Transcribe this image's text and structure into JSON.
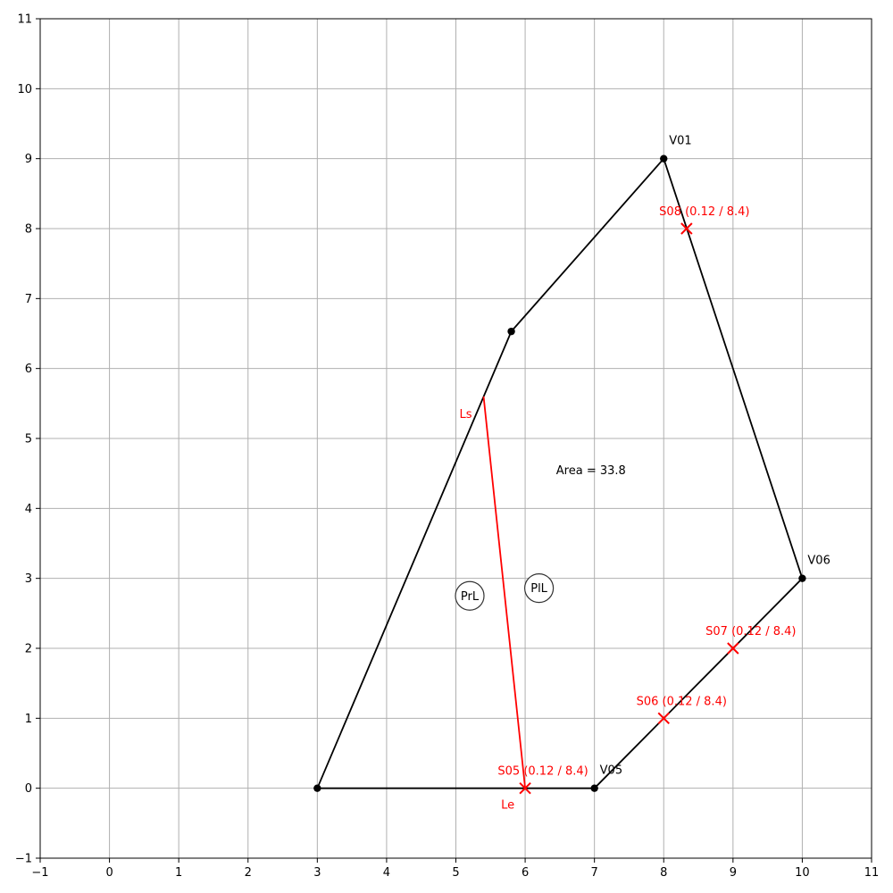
{
  "diagram": {
    "x_ticks": [
      -1,
      0,
      1,
      2,
      3,
      4,
      5,
      6,
      7,
      8,
      9,
      10,
      11
    ],
    "y_ticks": [
      -1,
      0,
      1,
      2,
      3,
      4,
      5,
      6,
      7,
      8,
      9,
      10,
      11
    ],
    "xlim": [
      -1,
      11
    ],
    "ylim": [
      -1,
      11
    ],
    "grid": true,
    "polygon": [
      {
        "x": 3,
        "y": 0,
        "label": ""
      },
      {
        "x": 7,
        "y": 0,
        "label": "V05"
      },
      {
        "x": 10,
        "y": 3,
        "label": "V06"
      },
      {
        "x": 8,
        "y": 9,
        "label": "V01"
      },
      {
        "x": 5.8,
        "y": 6.53,
        "label": ""
      }
    ],
    "area_label": "Area = 33.8",
    "area_label_pos": {
      "x": 6.95,
      "y": 4.55
    },
    "line": {
      "start": {
        "x": 5.4,
        "y": 5.6,
        "label": "Ls"
      },
      "end": {
        "x": 6.0,
        "y": 0.0,
        "label": "Le"
      }
    },
    "markers": [
      {
        "x": 6,
        "y": 0,
        "label": "S05 (0.12 / 8.4)"
      },
      {
        "x": 8,
        "y": 1,
        "label": "S06 (0.12 / 8.4)"
      },
      {
        "x": 9,
        "y": 2,
        "label": "S07 (0.12 / 8.4)"
      },
      {
        "x": 8.33,
        "y": 8,
        "label": "S08 (0.12 / 8.4)"
      }
    ],
    "circle_labels": [
      {
        "x": 5.2,
        "y": 2.75,
        "text": "PrL"
      },
      {
        "x": 6.2,
        "y": 2.86,
        "text": "PlL"
      }
    ],
    "colors": {
      "polygon": "#000000",
      "line": "#ff0000",
      "marker": "#ff0000",
      "grid": "#b0b0b0"
    }
  }
}
